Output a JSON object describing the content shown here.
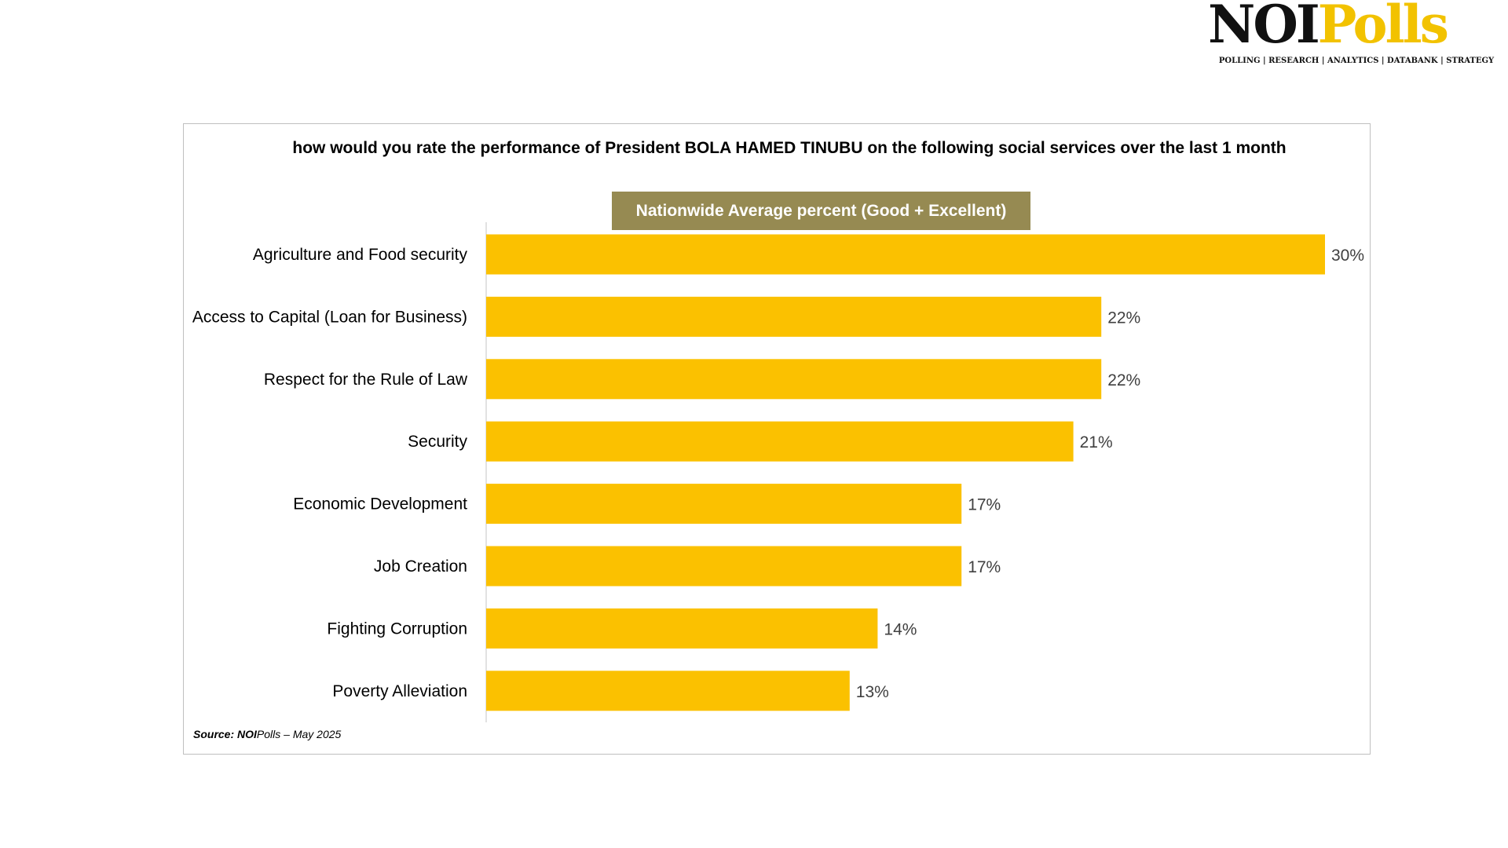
{
  "logo": {
    "brand_noi": "NOI",
    "brand_polls": "Polls",
    "tagline": "POLLING | RESEARCH | ANALYTICS | DATABANK | STRATEGY"
  },
  "colors": {
    "bar": "#FBC100",
    "legend_bg": "#968A52",
    "frame": "#BFBFBF"
  },
  "source": {
    "label": "Source:",
    "org": "NOI",
    "rest": "Polls –  May  2025"
  },
  "chart_data": {
    "type": "bar",
    "orientation": "horizontal",
    "title": "how would you rate the performance of President BOLA HAMED TINUBU on the following social services over the last 1 month",
    "series": [
      {
        "name": "Nationwide Average percent (Good + Excellent)",
        "values": [
          30,
          22,
          22,
          21,
          17,
          17,
          14,
          13
        ]
      }
    ],
    "categories": [
      "Agriculture and Food security",
      "Access to Capital (Loan for Business)",
      "Respect for the Rule of Law",
      "Security",
      "Economic Development",
      "Job Creation",
      "Fighting Corruption",
      "Poverty Alleviation"
    ],
    "value_labels": [
      "30%",
      "22%",
      "22%",
      "21%",
      "17%",
      "17%",
      "14%",
      "13%"
    ],
    "xlim": [
      0,
      30
    ],
    "grid": false,
    "legend": "top"
  }
}
